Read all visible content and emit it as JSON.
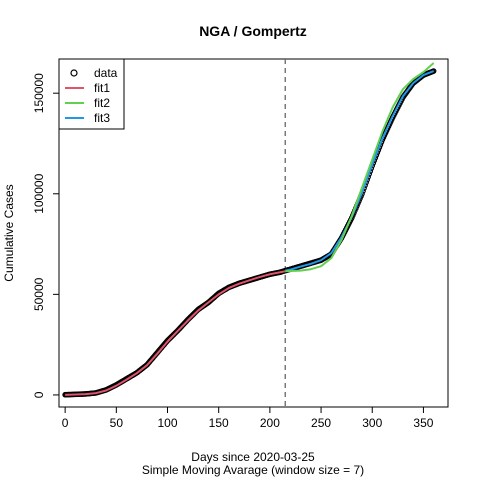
{
  "chart_data": {
    "type": "line",
    "title": "NGA / Gompertz",
    "xlabel": "Days since 2020-03-25",
    "xlabel2": "Simple Moving Avarage (window size = 7)",
    "ylabel": "Cumulative Cases",
    "xlim": [
      -6,
      374
    ],
    "ylim": [
      -6000,
      167000
    ],
    "xticks": [
      0,
      50,
      100,
      150,
      200,
      250,
      300,
      350
    ],
    "yticks": [
      0,
      50000,
      100000,
      150000
    ],
    "vline_x": 215,
    "legend_position": "top-left",
    "colors": {
      "data": "#000000",
      "fit1": "#DF536B",
      "fit2": "#61D04F",
      "fit3": "#2297E6",
      "vline": "#666666"
    },
    "legend": [
      {
        "label": "data",
        "kind": "circle"
      },
      {
        "label": "fit1",
        "kind": "line",
        "color": "#DF536B"
      },
      {
        "label": "fit2",
        "kind": "line",
        "color": "#61D04F"
      },
      {
        "label": "fit3",
        "kind": "line",
        "color": "#2297E6"
      }
    ],
    "series": [
      {
        "name": "data",
        "x": [
          0,
          10,
          20,
          30,
          40,
          50,
          60,
          70,
          80,
          90,
          100,
          110,
          120,
          130,
          140,
          150,
          160,
          170,
          180,
          190,
          200,
          210,
          215,
          220,
          230,
          240,
          250,
          260,
          270,
          280,
          290,
          300,
          310,
          320,
          330,
          340,
          350,
          360
        ],
        "y": [
          100,
          300,
          500,
          1000,
          2500,
          5000,
          8000,
          11000,
          15000,
          21000,
          27000,
          32000,
          37500,
          42500,
          46000,
          50500,
          53500,
          55500,
          57000,
          58500,
          60000,
          61000,
          61800,
          62500,
          64000,
          65500,
          67000,
          70000,
          78000,
          88000,
          100000,
          114000,
          127000,
          138000,
          148000,
          155000,
          159000,
          161000
        ]
      },
      {
        "name": "fit1",
        "x": [
          0,
          10,
          20,
          30,
          40,
          50,
          60,
          70,
          80,
          90,
          100,
          110,
          120,
          130,
          140,
          150,
          160,
          170,
          180,
          190,
          200,
          210,
          215
        ],
        "y": [
          0,
          200,
          400,
          900,
          2200,
          4600,
          7600,
          10800,
          14800,
          20500,
          26500,
          31800,
          37000,
          42000,
          46000,
          50000,
          53200,
          55300,
          57000,
          58600,
          60000,
          61000,
          61500
        ]
      },
      {
        "name": "fit2",
        "x": [
          215,
          220,
          230,
          240,
          250,
          260,
          270,
          280,
          290,
          300,
          310,
          320,
          330,
          340,
          350,
          360
        ],
        "y": [
          61500,
          61600,
          61800,
          62500,
          64000,
          68000,
          77000,
          89000,
          103000,
          117000,
          131000,
          143000,
          152000,
          157000,
          160500,
          165000
        ]
      },
      {
        "name": "fit3",
        "x": [
          215,
          220,
          230,
          240,
          250,
          260,
          270,
          280,
          290,
          300,
          310,
          320,
          330,
          340,
          350,
          360
        ],
        "y": [
          61800,
          62300,
          63800,
          65200,
          67000,
          70500,
          78500,
          88500,
          100500,
          114500,
          127500,
          138500,
          148500,
          155000,
          159000,
          161000
        ]
      }
    ]
  }
}
